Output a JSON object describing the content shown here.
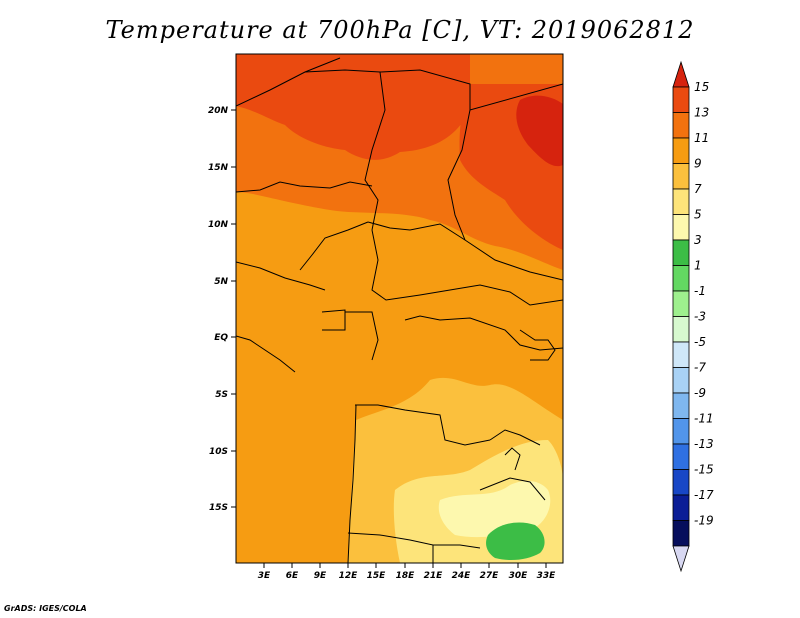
{
  "title": "Temperature at 700hPa [C], VT: 2019062812",
  "credit": "GrADS: IGES/COLA",
  "lat_labels": [
    "20N",
    "15N",
    "10N",
    "5N",
    "EQ",
    "5S",
    "10S",
    "15S"
  ],
  "lon_labels": [
    "3E",
    "6E",
    "9E",
    "12E",
    "15E",
    "18E",
    "21E",
    "24E",
    "27E",
    "30E",
    "33E"
  ],
  "colorbar": {
    "labels": [
      "15",
      "13",
      "11",
      "9",
      "7",
      "5",
      "3",
      "1",
      "-1",
      "-3",
      "-5",
      "-7",
      "-9",
      "-11",
      "-13",
      "-15",
      "-17",
      "-19"
    ],
    "colors": [
      "#d6230e",
      "#ea4a10",
      "#f2720f",
      "#f69c12",
      "#fbc03d",
      "#fde47a",
      "#fdf8ae",
      "#3cbd46",
      "#63d862",
      "#9ef08e",
      "#d7f9cf",
      "#cfe7f8",
      "#a9d2f5",
      "#7fb7ef",
      "#5295ea",
      "#2f70e2",
      "#1847c6",
      "#0b1e96",
      "#060e5c",
      "#d8d8f2"
    ]
  },
  "colors": {
    "frame": "#000000",
    "border": "#000000"
  }
}
